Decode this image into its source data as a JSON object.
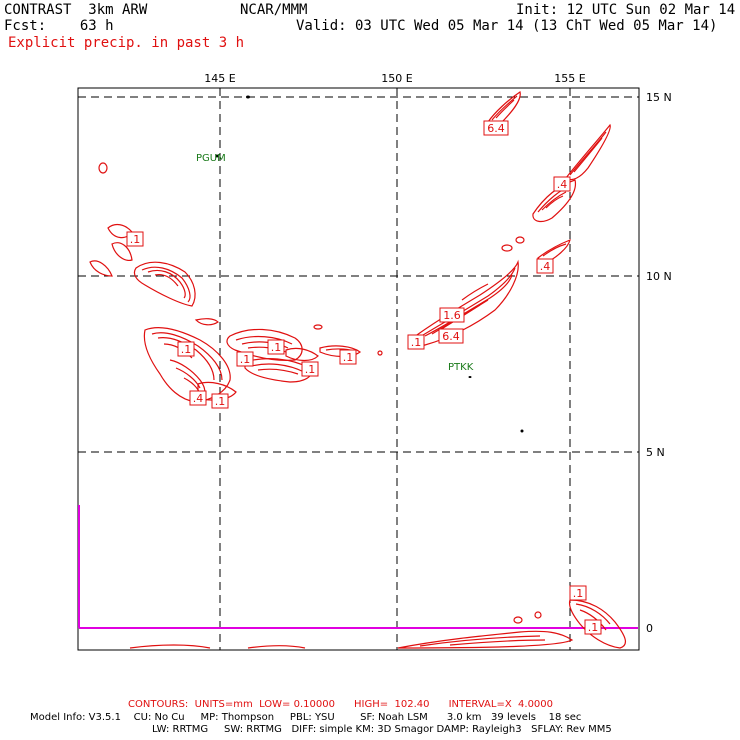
{
  "header": {
    "model": "CONTRAST  3km ARW",
    "forecast": "Fcst:    63 h",
    "org": "NCAR/MMM",
    "init": "Init: 12 UTC Sun 02 Mar 14",
    "valid": "Valid: 03 UTC Wed 05 Mar 14 (13 ChT Wed 05 Mar 14)",
    "field": "Explicit precip. in past 3 h"
  },
  "map": {
    "lon_labels": [
      "145 E",
      "150 E",
      "155 E"
    ],
    "lat_labels": [
      "15 N",
      "10 N",
      "5 N",
      "0"
    ],
    "stations": [
      "PGUM",
      "PTKK"
    ],
    "contour_labels": [
      ".1",
      ".1",
      ".1",
      ".1",
      ".1",
      ".1",
      ".4",
      ".1",
      "6.4",
      ".4",
      ".4",
      "1.6",
      "6.4",
      ".1",
      ".1",
      ".1"
    ],
    "colors": {
      "contour": "#e01010",
      "station": "#1a7a1a",
      "boundary": "#e000e0",
      "grid": "#000000"
    }
  },
  "footer": {
    "contours": "CONTOURS:  UNITS=mm  LOW= 0.10000      HIGH=  102.40      INTERVAL=X  4.0000",
    "model_info": "Model Info: V3.5.1    CU: No Cu     MP: Thompson     PBL: YSU        SF: Noah LSM      3.0 km   39 levels    18 sec",
    "physics": "LW: RRTMG     SW: RRTMG   DIFF: simple KM: 3D Smagor DAMP: Rayleigh3   SFLAY: Rev MM5"
  }
}
